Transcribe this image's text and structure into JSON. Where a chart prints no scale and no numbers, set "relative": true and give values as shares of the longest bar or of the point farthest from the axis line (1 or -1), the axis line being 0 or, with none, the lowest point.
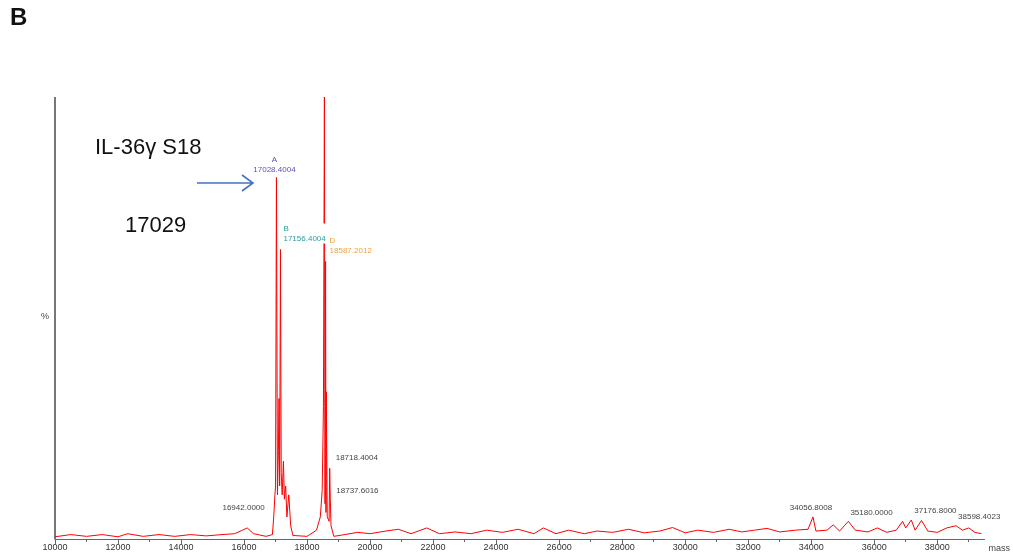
{
  "chart_data": {
    "type": "line",
    "relative": true,
    "xlabel": "mass",
    "ylabel": "%",
    "xlim": [
      10000,
      39500
    ],
    "xticks": [
      10000,
      12000,
      14000,
      16000,
      18000,
      20000,
      22000,
      24000,
      26000,
      28000,
      30000,
      32000,
      34000,
      36000,
      38000
    ],
    "grid": false,
    "marker": "none",
    "line_style": "solid",
    "series": [
      {
        "color": "#ff0000",
        "x": [
          10000,
          10500,
          11000,
          11500,
          12000,
          12300,
          12800,
          13300,
          13800,
          14300,
          14800,
          15300,
          15700,
          15950,
          16100,
          16300,
          16700,
          16900,
          16942,
          16980,
          17000,
          17028,
          17060,
          17090,
          17110,
          17130,
          17156,
          17180,
          17210,
          17250,
          17280,
          17320,
          17360,
          17420,
          17480,
          17550,
          18000,
          18300,
          18420,
          18480,
          18520,
          18550,
          18570,
          18587,
          18600,
          18610,
          18640,
          18700,
          18718,
          18737,
          18760,
          18850,
          19200,
          19600,
          20000,
          20500,
          20900,
          21300,
          21800,
          22200,
          22700,
          23200,
          23700,
          24200,
          24700,
          25200,
          25500,
          25900,
          26300,
          26800,
          27200,
          27700,
          28200,
          28700,
          29200,
          29600,
          30000,
          30400,
          30900,
          31400,
          31800,
          32200,
          32600,
          33000,
          33500,
          33900,
          34056,
          34150,
          34500,
          34700,
          34900,
          35180,
          35400,
          35800,
          36100,
          36400,
          36700,
          36900,
          37000,
          37176,
          37300,
          37500,
          37700,
          38000,
          38300,
          38598,
          38800,
          39000,
          39200,
          39400
        ],
        "values": [
          0.005,
          0.01,
          0.006,
          0.01,
          0.005,
          0.012,
          0.006,
          0.01,
          0.006,
          0.01,
          0.007,
          0.01,
          0.012,
          0.02,
          0.025,
          0.012,
          0.006,
          0.01,
          0.05,
          0.1,
          0.12,
          0.818,
          0.1,
          0.2,
          0.318,
          0.12,
          0.655,
          0.15,
          0.1,
          0.176,
          0.09,
          0.12,
          0.05,
          0.1,
          0.03,
          0.008,
          0.006,
          0.02,
          0.05,
          0.11,
          0.3,
          1,
          0.08,
          0.628,
          0.06,
          0.333,
          0.05,
          0.04,
          0.16,
          0.09,
          0.03,
          0.006,
          0.01,
          0.015,
          0.012,
          0.018,
          0.022,
          0.012,
          0.025,
          0.012,
          0.016,
          0.012,
          0.02,
          0.015,
          0.022,
          0.012,
          0.025,
          0.012,
          0.02,
          0.012,
          0.018,
          0.015,
          0.022,
          0.014,
          0.018,
          0.026,
          0.014,
          0.02,
          0.015,
          0.022,
          0.016,
          0.02,
          0.024,
          0.016,
          0.02,
          0.022,
          0.05,
          0.018,
          0.02,
          0.032,
          0.018,
          0.04,
          0.02,
          0.016,
          0.025,
          0.015,
          0.02,
          0.04,
          0.025,
          0.043,
          0.02,
          0.042,
          0.018,
          0.015,
          0.025,
          0.03,
          0.02,
          0.025,
          0.015,
          0.012
        ]
      }
    ],
    "annotations": [
      "B",
      "IL-36γ S18",
      "17029",
      {
        "text": "A\n17028.4004",
        "x": 17028,
        "y": 0.818
      },
      {
        "text": "B\n17156.4004",
        "x": 17156,
        "y": 0.655
      },
      {
        "text": "D\n18587.2012",
        "x": 18587,
        "y": 0.628
      },
      {
        "text": "16942.0000",
        "x": 16942,
        "y": 0.05
      },
      {
        "text": "18718.4004",
        "x": 18718,
        "y": 0.16
      },
      {
        "text": "18737.6016",
        "x": 18737,
        "y": 0.09
      },
      {
        "text": "34056.8008",
        "x": 34056,
        "y": 0.05
      },
      {
        "text": "35180.0000",
        "x": 35180,
        "y": 0.04
      },
      {
        "text": "37176.8000",
        "x": 37176,
        "y": 0.043
      },
      {
        "text": "38598.4023",
        "x": 38598,
        "y": 0.03
      }
    ]
  }
}
